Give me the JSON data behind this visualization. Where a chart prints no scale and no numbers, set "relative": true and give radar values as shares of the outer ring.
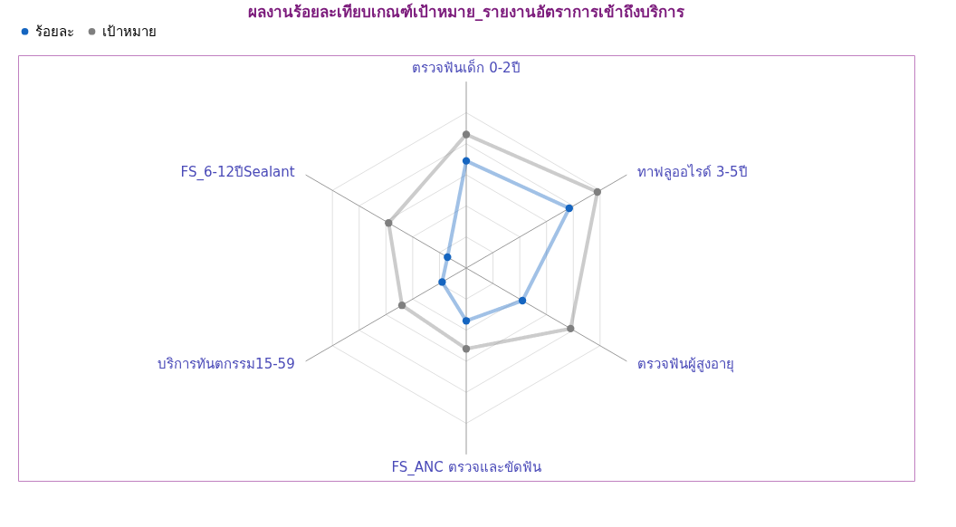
{
  "chart_data": {
    "type": "radar",
    "title": "ผลงานร้อยละเทียบเกณฑ์เป้าหมาย_รายงานอัตราการเข้าถึงบริการ",
    "categories": [
      "ตรวจฟันเด็ก 0-2ปี",
      "ทาฟลูออไรด์ 3-5ปี",
      "ตรวจฟันผู้สูงอายุ",
      "FS_ANC ตรวจและขัดฟัน",
      "บริการทันตกรรม15-59",
      "FS_6-12ปีSealant"
    ],
    "relative": true,
    "grid": true,
    "legend": "top left",
    "marker": "circle",
    "line_style": "solid",
    "series": [
      {
        "name": "ร้อยละ",
        "color": "#1565c0",
        "values": [
          0.69,
          0.77,
          0.42,
          0.34,
          0.18,
          0.14
        ]
      },
      {
        "name": "เป้าหมาย",
        "color": "#7f7f7f",
        "values": [
          0.86,
          0.98,
          0.78,
          0.52,
          0.48,
          0.58
        ]
      }
    ]
  }
}
